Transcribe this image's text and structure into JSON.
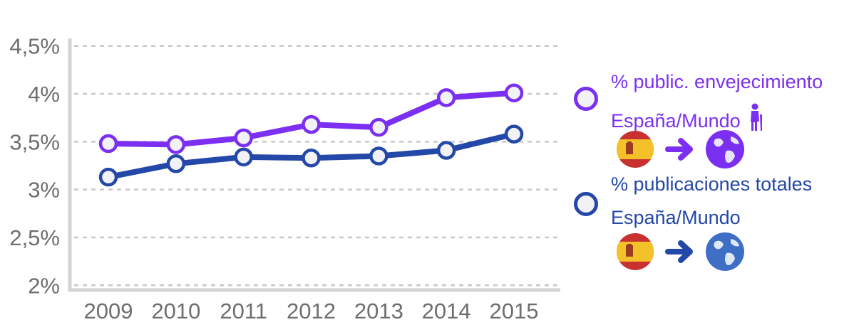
{
  "chart_data": {
    "type": "line",
    "categories": [
      "2009",
      "2010",
      "2011",
      "2012",
      "2013",
      "2014",
      "2015"
    ],
    "y_tick_labels": [
      "2%",
      "2,5%",
      "3%",
      "3,5%",
      "4%",
      "4,5%"
    ],
    "y_ticks": [
      2,
      2.5,
      3,
      3.5,
      4,
      4.5
    ],
    "ylim": [
      1.95,
      4.55
    ],
    "grid": true,
    "legend_position": "right",
    "series": [
      {
        "name_line1": "% public. envejecimiento",
        "name_line2": "España/Mundo",
        "color": "#7b2ff0",
        "values": [
          3.48,
          3.47,
          3.54,
          3.68,
          3.65,
          3.96,
          4.01
        ]
      },
      {
        "name_line1": "% publicaciones totales",
        "name_line2": "España/Mundo",
        "color": "#2448a8",
        "values": [
          3.13,
          3.27,
          3.34,
          3.33,
          3.35,
          3.41,
          3.58
        ]
      }
    ]
  },
  "colors": {
    "axis": "#d1d3d4",
    "grid": "#c8c8c8",
    "marker_fill": "#f2f2f4",
    "flag_red": "#c8312f",
    "flag_yellow": "#f3c22b",
    "globe": "#3f6fc5"
  },
  "icons": [
    "elderly-person-icon",
    "spain-flag-icon",
    "arrow-right-icon",
    "globe-icon"
  ]
}
